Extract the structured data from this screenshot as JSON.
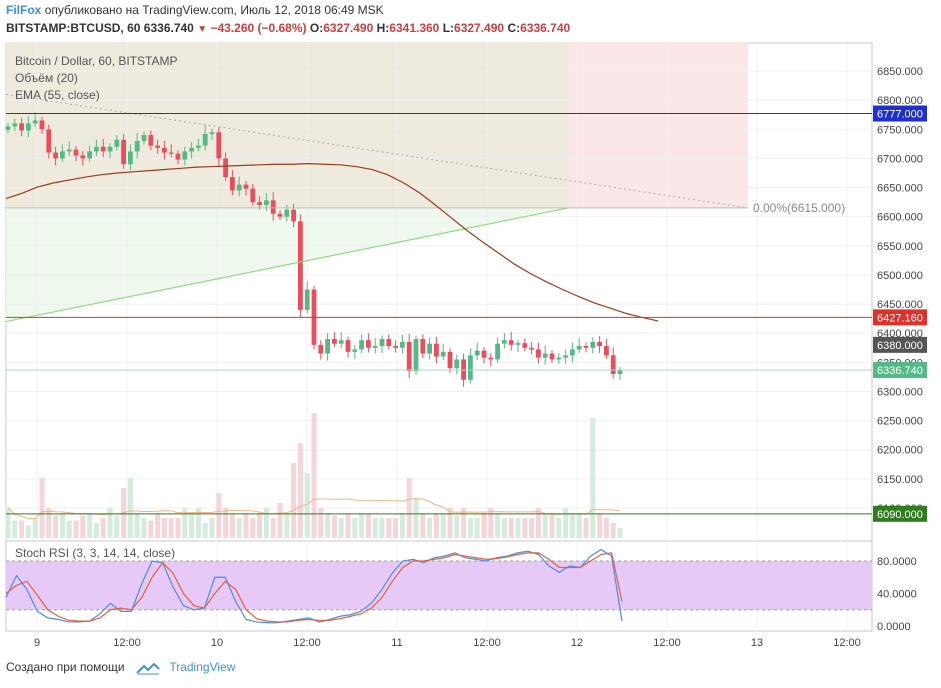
{
  "header": {
    "user": "FilFox",
    "published": "опубликовано на TradingView.com, Июль 12, 2018 06:49 MSK",
    "symbol": "BITSTAMP:BTCUSD, 60",
    "last": "6336.740",
    "change": "−43.260 (−0.68%)",
    "o_label": "O:",
    "o": "6327.490",
    "h_label": "H:",
    "h": "6341.360",
    "l_label": "L:",
    "l": "6327.490",
    "c_label": "C:",
    "c": "6336.740"
  },
  "legend": {
    "line1": "Bitcoin / Dollar, 60, BITSTAMP",
    "line2": "Объём (20)",
    "line3": "EMA (55, close)"
  },
  "fib_label": "0.00%(6615.000)",
  "stoch_title": "Stoch RSI (3, 3, 14, 14, close)",
  "footer": {
    "made_with": "Создано при помощи",
    "brand": "TradingView"
  },
  "colors": {
    "up": "#53b987",
    "down": "#eb4d5c",
    "ema": "#a0381b",
    "stochK": "#4a8fdc",
    "stochD": "#e5603b",
    "accent": "#3f8fd2"
  },
  "chart_data": [
    {
      "type": "candlestick",
      "title": "Bitcoin / Dollar, 60, BITSTAMP",
      "ylim": [
        6050,
        6900
      ],
      "y_ticks": [
        6100,
        6150,
        6200,
        6250,
        6300,
        6350,
        6400,
        6450,
        6500,
        6550,
        6600,
        6650,
        6700,
        6750,
        6800,
        6850
      ],
      "x_ticks": [
        "9",
        "12:00",
        "10",
        "12:00",
        "11",
        "12:00",
        "12",
        "12:00",
        "13",
        "12:00"
      ],
      "price_labels": [
        {
          "value": 6777.0,
          "text": "6777.000",
          "color": "#1f2fcf"
        },
        {
          "value": 6427.16,
          "text": "6427.160",
          "color": "#e0302a"
        },
        {
          "value": 6380.0,
          "text": "6380.000",
          "color": "#555555"
        },
        {
          "value": 6336.74,
          "text": "6336.740",
          "color": "#53b987"
        },
        {
          "value": 6090.0,
          "text": "6090.000",
          "color": "#2f7d1f"
        }
      ],
      "horizontal_lines": [
        {
          "value": 6777.0,
          "color": "#1f2fcf"
        },
        {
          "value": 6427.16,
          "color": "#e0302a"
        },
        {
          "value": 6090.0,
          "color": "#2f7d1f"
        }
      ],
      "candles_close": [
        6755,
        6760,
        6748,
        6760,
        6765,
        6750,
        6710,
        6700,
        6712,
        6715,
        6705,
        6700,
        6712,
        6720,
        6712,
        6720,
        6732,
        6690,
        6712,
        6730,
        6740,
        6722,
        6718,
        6710,
        6708,
        6698,
        6712,
        6718,
        6722,
        6742,
        6745,
        6700,
        6668,
        6645,
        6655,
        6648,
        6625,
        6620,
        6628,
        6605,
        6600,
        6612,
        6592,
        6440,
        6475,
        6380,
        6365,
        6390,
        6382,
        6388,
        6368,
        6372,
        6388,
        6375,
        6378,
        6390,
        6378,
        6375,
        6385,
        6335,
        6390,
        6365,
        6382,
        6360,
        6368,
        6340,
        6355,
        6320,
        6362,
        6370,
        6358,
        6355,
        6382,
        6388,
        6380,
        6383,
        6375,
        6372,
        6358,
        6365,
        6355,
        6358,
        6362,
        6372,
        6378,
        6375,
        6385,
        6378,
        6362,
        6330,
        6336
      ],
      "volume": [
        12,
        7,
        7,
        5,
        8,
        24,
        12,
        9,
        10,
        7,
        7,
        9,
        10,
        6,
        8,
        12,
        9,
        20,
        24,
        10,
        8,
        7,
        10,
        8,
        8,
        8,
        12,
        10,
        12,
        6,
        8,
        18,
        12,
        10,
        8,
        10,
        8,
        10,
        12,
        8,
        14,
        10,
        30,
        38,
        26,
        50,
        12,
        10,
        9,
        8,
        10,
        8,
        10,
        10,
        8,
        8,
        8,
        8,
        10,
        24,
        16,
        10,
        8,
        10,
        10,
        12,
        9,
        12,
        8,
        8,
        10,
        12,
        10,
        8,
        8,
        8,
        8,
        8,
        12,
        10,
        10,
        8,
        12,
        10,
        10,
        8,
        48,
        10,
        8,
        6,
        4
      ],
      "ema": [
        6631,
        6640,
        6651,
        6658,
        6663,
        6668,
        6672,
        6675,
        6677,
        6679,
        6681,
        6683,
        6685,
        6686,
        6687,
        6688,
        6689,
        6690,
        6690,
        6691,
        6690,
        6689,
        6686,
        6681,
        6672,
        6658,
        6641,
        6620,
        6598,
        6576,
        6556,
        6537,
        6518,
        6502,
        6488,
        6475,
        6463,
        6452,
        6443,
        6434,
        6427,
        6421
      ],
      "fib_level": 6615.0
    },
    {
      "type": "line",
      "title": "Stoch RSI (3, 3, 14, 14, close)",
      "ylim": [
        0,
        100
      ],
      "y_ticks": [
        0,
        40,
        80
      ],
      "y_tick_labels": [
        "0.0000",
        "40.0000",
        "80.0000"
      ],
      "band": [
        20,
        80
      ],
      "series": [
        {
          "values": [
            35,
            62,
            45,
            18,
            10,
            8,
            5,
            5,
            6,
            15,
            28,
            18,
            18,
            52,
            80,
            78,
            48,
            25,
            20,
            22,
            60,
            60,
            30,
            8,
            5,
            4,
            4,
            6,
            8,
            10,
            5,
            8,
            12,
            14,
            18,
            28,
            45,
            65,
            80,
            82,
            78,
            84,
            86,
            90,
            84,
            82,
            80,
            84,
            86,
            90,
            92,
            88,
            74,
            66,
            74,
            72,
            86,
            94,
            86,
            6
          ]
        },
        {
          "values": [
            40,
            50,
            55,
            38,
            20,
            12,
            7,
            6,
            6,
            10,
            20,
            22,
            20,
            35,
            60,
            78,
            65,
            40,
            25,
            22,
            40,
            55,
            45,
            20,
            9,
            6,
            5,
            5,
            7,
            8,
            7,
            7,
            9,
            12,
            15,
            22,
            35,
            55,
            72,
            80,
            80,
            82,
            84,
            88,
            86,
            84,
            82,
            83,
            85,
            88,
            90,
            90,
            82,
            72,
            72,
            72,
            80,
            88,
            90,
            30
          ]
        }
      ]
    }
  ]
}
